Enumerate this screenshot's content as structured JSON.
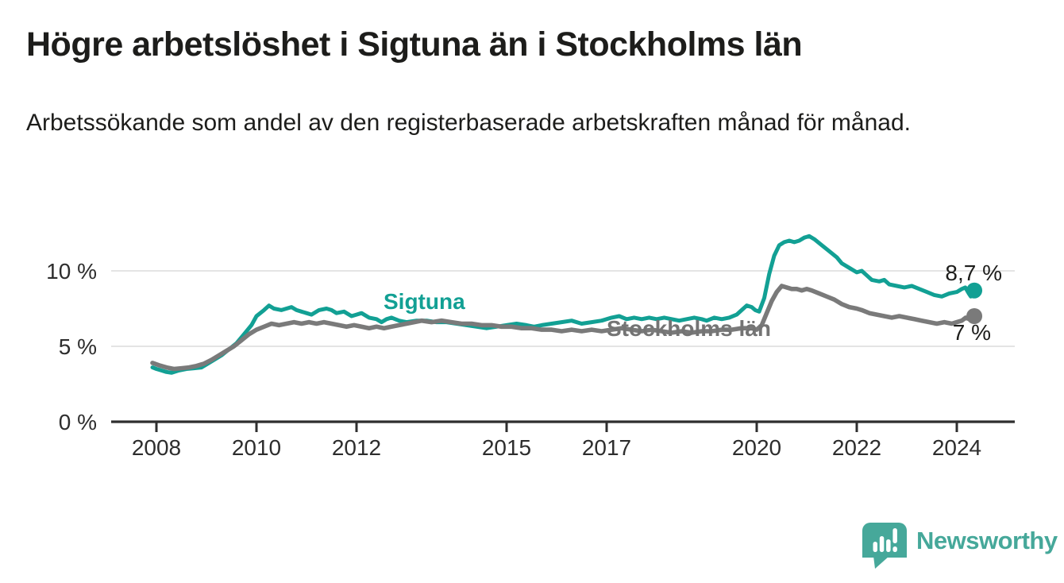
{
  "header": {
    "title": "Högre arbetslöshet i Sigtuna än i Stockholms län",
    "subtitle": "Arbetssökande som andel av den registerbaserade arbetskraften månad för månad."
  },
  "branding": {
    "name": "Newsworthy",
    "logo_icon": "bar-chart-speech-bubble-icon",
    "teal": "#46a89a"
  },
  "colors": {
    "sigtuna_line": "#12a094",
    "stockholm_line": "#7a7a7a",
    "gridline": "#dbdbdb",
    "axis": "#2e2e2e",
    "text": "#1d1d1b"
  },
  "chart_data": {
    "type": "line",
    "x_axis": {
      "ticks": [
        2008,
        2010,
        2012,
        2015,
        2017,
        2020,
        2022,
        2024
      ]
    },
    "y_axis": {
      "ticks": [
        {
          "value": 0,
          "label": "0 %"
        },
        {
          "value": 5,
          "label": "5 %"
        },
        {
          "value": 10,
          "label": "10 %"
        }
      ],
      "ylim": [
        0,
        13
      ]
    },
    "grid": "horizontal-only",
    "legend": "inline-labels",
    "series": [
      {
        "name": "Sigtuna",
        "color": "#12a094",
        "end_value_label": "8,7 %",
        "end_value": 8.7,
        "points": [
          [
            2007.92,
            3.6
          ],
          [
            2008.0,
            3.5
          ],
          [
            2008.1,
            3.4
          ],
          [
            2008.2,
            3.3
          ],
          [
            2008.3,
            3.25
          ],
          [
            2008.45,
            3.4
          ],
          [
            2008.6,
            3.5
          ],
          [
            2008.75,
            3.55
          ],
          [
            2008.9,
            3.6
          ],
          [
            2009.0,
            3.8
          ],
          [
            2009.15,
            4.1
          ],
          [
            2009.3,
            4.4
          ],
          [
            2009.45,
            4.8
          ],
          [
            2009.6,
            5.2
          ],
          [
            2009.75,
            5.8
          ],
          [
            2009.9,
            6.4
          ],
          [
            2010.0,
            7.0
          ],
          [
            2010.15,
            7.4
          ],
          [
            2010.25,
            7.7
          ],
          [
            2010.35,
            7.5
          ],
          [
            2010.5,
            7.4
          ],
          [
            2010.6,
            7.5
          ],
          [
            2010.7,
            7.6
          ],
          [
            2010.8,
            7.4
          ],
          [
            2010.9,
            7.3
          ],
          [
            2011.0,
            7.2
          ],
          [
            2011.1,
            7.1
          ],
          [
            2011.25,
            7.4
          ],
          [
            2011.4,
            7.5
          ],
          [
            2011.5,
            7.4
          ],
          [
            2011.6,
            7.2
          ],
          [
            2011.75,
            7.3
          ],
          [
            2011.9,
            7.0
          ],
          [
            2012.0,
            7.1
          ],
          [
            2012.1,
            7.2
          ],
          [
            2012.25,
            6.9
          ],
          [
            2012.4,
            6.8
          ],
          [
            2012.5,
            6.6
          ],
          [
            2012.6,
            6.8
          ],
          [
            2012.7,
            6.9
          ],
          [
            2012.85,
            6.7
          ],
          [
            2013.0,
            6.6
          ],
          [
            2013.2,
            6.7
          ],
          [
            2013.4,
            6.7
          ],
          [
            2013.6,
            6.6
          ],
          [
            2013.8,
            6.6
          ],
          [
            2014.0,
            6.5
          ],
          [
            2014.2,
            6.4
          ],
          [
            2014.4,
            6.3
          ],
          [
            2014.6,
            6.2
          ],
          [
            2014.8,
            6.3
          ],
          [
            2015.0,
            6.4
          ],
          [
            2015.2,
            6.5
          ],
          [
            2015.4,
            6.4
          ],
          [
            2015.55,
            6.3
          ],
          [
            2015.7,
            6.4
          ],
          [
            2015.9,
            6.5
          ],
          [
            2016.1,
            6.6
          ],
          [
            2016.3,
            6.7
          ],
          [
            2016.5,
            6.5
          ],
          [
            2016.7,
            6.6
          ],
          [
            2016.9,
            6.7
          ],
          [
            2017.1,
            6.9
          ],
          [
            2017.25,
            7.0
          ],
          [
            2017.4,
            6.8
          ],
          [
            2017.55,
            6.9
          ],
          [
            2017.7,
            6.8
          ],
          [
            2017.85,
            6.9
          ],
          [
            2018.0,
            6.8
          ],
          [
            2018.15,
            6.9
          ],
          [
            2018.3,
            6.8
          ],
          [
            2018.45,
            6.7
          ],
          [
            2018.6,
            6.8
          ],
          [
            2018.75,
            6.9
          ],
          [
            2018.9,
            6.8
          ],
          [
            2019.0,
            6.7
          ],
          [
            2019.15,
            6.9
          ],
          [
            2019.3,
            6.8
          ],
          [
            2019.45,
            6.9
          ],
          [
            2019.6,
            7.1
          ],
          [
            2019.7,
            7.4
          ],
          [
            2019.8,
            7.7
          ],
          [
            2019.9,
            7.6
          ],
          [
            2019.97,
            7.4
          ],
          [
            2020.05,
            7.3
          ],
          [
            2020.15,
            8.2
          ],
          [
            2020.25,
            9.8
          ],
          [
            2020.35,
            11.0
          ],
          [
            2020.45,
            11.7
          ],
          [
            2020.55,
            11.9
          ],
          [
            2020.65,
            12.0
          ],
          [
            2020.75,
            11.9
          ],
          [
            2020.85,
            12.0
          ],
          [
            2020.95,
            12.2
          ],
          [
            2021.05,
            12.3
          ],
          [
            2021.15,
            12.1
          ],
          [
            2021.3,
            11.7
          ],
          [
            2021.45,
            11.3
          ],
          [
            2021.6,
            10.9
          ],
          [
            2021.7,
            10.5
          ],
          [
            2021.85,
            10.2
          ],
          [
            2022.0,
            9.9
          ],
          [
            2022.1,
            10.0
          ],
          [
            2022.2,
            9.7
          ],
          [
            2022.3,
            9.4
          ],
          [
            2022.45,
            9.3
          ],
          [
            2022.55,
            9.4
          ],
          [
            2022.65,
            9.1
          ],
          [
            2022.8,
            9.0
          ],
          [
            2022.95,
            8.9
          ],
          [
            2023.1,
            9.0
          ],
          [
            2023.25,
            8.8
          ],
          [
            2023.4,
            8.6
          ],
          [
            2023.55,
            8.4
          ],
          [
            2023.7,
            8.3
          ],
          [
            2023.85,
            8.5
          ],
          [
            2024.0,
            8.6
          ],
          [
            2024.1,
            8.8
          ],
          [
            2024.17,
            8.9
          ],
          [
            2024.24,
            8.5
          ],
          [
            2024.28,
            8.3
          ],
          [
            2024.32,
            8.5
          ],
          [
            2024.35,
            8.7
          ]
        ]
      },
      {
        "name": "Stockholms län",
        "color": "#7a7a7a",
        "end_value_label": "7 %",
        "end_value": 7.0,
        "points": [
          [
            2007.92,
            3.9
          ],
          [
            2008.05,
            3.75
          ],
          [
            2008.2,
            3.6
          ],
          [
            2008.35,
            3.5
          ],
          [
            2008.5,
            3.55
          ],
          [
            2008.65,
            3.6
          ],
          [
            2008.8,
            3.7
          ],
          [
            2008.95,
            3.85
          ],
          [
            2009.1,
            4.1
          ],
          [
            2009.25,
            4.4
          ],
          [
            2009.4,
            4.7
          ],
          [
            2009.55,
            5.0
          ],
          [
            2009.7,
            5.4
          ],
          [
            2009.85,
            5.8
          ],
          [
            2010.0,
            6.1
          ],
          [
            2010.15,
            6.3
          ],
          [
            2010.3,
            6.5
          ],
          [
            2010.45,
            6.4
          ],
          [
            2010.6,
            6.5
          ],
          [
            2010.75,
            6.6
          ],
          [
            2010.9,
            6.5
          ],
          [
            2011.05,
            6.6
          ],
          [
            2011.2,
            6.5
          ],
          [
            2011.35,
            6.6
          ],
          [
            2011.5,
            6.5
          ],
          [
            2011.65,
            6.4
          ],
          [
            2011.8,
            6.3
          ],
          [
            2011.95,
            6.4
          ],
          [
            2012.1,
            6.3
          ],
          [
            2012.25,
            6.2
          ],
          [
            2012.4,
            6.3
          ],
          [
            2012.55,
            6.2
          ],
          [
            2012.7,
            6.3
          ],
          [
            2012.85,
            6.4
          ],
          [
            2013.0,
            6.5
          ],
          [
            2013.15,
            6.6
          ],
          [
            2013.3,
            6.7
          ],
          [
            2013.5,
            6.6
          ],
          [
            2013.7,
            6.7
          ],
          [
            2013.9,
            6.6
          ],
          [
            2014.1,
            6.5
          ],
          [
            2014.3,
            6.5
          ],
          [
            2014.5,
            6.4
          ],
          [
            2014.7,
            6.4
          ],
          [
            2014.9,
            6.3
          ],
          [
            2015.1,
            6.3
          ],
          [
            2015.3,
            6.2
          ],
          [
            2015.5,
            6.2
          ],
          [
            2015.7,
            6.1
          ],
          [
            2015.9,
            6.1
          ],
          [
            2016.1,
            6.0
          ],
          [
            2016.3,
            6.1
          ],
          [
            2016.5,
            6.0
          ],
          [
            2016.7,
            6.1
          ],
          [
            2016.9,
            6.0
          ],
          [
            2017.1,
            6.1
          ],
          [
            2017.3,
            6.2
          ],
          [
            2017.5,
            6.1
          ],
          [
            2017.7,
            6.0
          ],
          [
            2017.9,
            6.1
          ],
          [
            2018.1,
            6.0
          ],
          [
            2018.3,
            5.9
          ],
          [
            2018.5,
            6.0
          ],
          [
            2018.7,
            5.9
          ],
          [
            2018.9,
            6.0
          ],
          [
            2019.1,
            6.0
          ],
          [
            2019.3,
            6.1
          ],
          [
            2019.5,
            6.1
          ],
          [
            2019.7,
            6.2
          ],
          [
            2019.9,
            6.2
          ],
          [
            2020.0,
            6.1
          ],
          [
            2020.1,
            6.4
          ],
          [
            2020.2,
            7.2
          ],
          [
            2020.3,
            8.0
          ],
          [
            2020.4,
            8.6
          ],
          [
            2020.5,
            9.0
          ],
          [
            2020.6,
            8.9
          ],
          [
            2020.7,
            8.8
          ],
          [
            2020.8,
            8.8
          ],
          [
            2020.9,
            8.7
          ],
          [
            2021.0,
            8.8
          ],
          [
            2021.1,
            8.7
          ],
          [
            2021.25,
            8.5
          ],
          [
            2021.4,
            8.3
          ],
          [
            2021.55,
            8.1
          ],
          [
            2021.7,
            7.8
          ],
          [
            2021.85,
            7.6
          ],
          [
            2022.0,
            7.5
          ],
          [
            2022.1,
            7.4
          ],
          [
            2022.25,
            7.2
          ],
          [
            2022.4,
            7.1
          ],
          [
            2022.55,
            7.0
          ],
          [
            2022.7,
            6.9
          ],
          [
            2022.85,
            7.0
          ],
          [
            2023.0,
            6.9
          ],
          [
            2023.15,
            6.8
          ],
          [
            2023.3,
            6.7
          ],
          [
            2023.45,
            6.6
          ],
          [
            2023.6,
            6.5
          ],
          [
            2023.75,
            6.6
          ],
          [
            2023.9,
            6.5
          ],
          [
            2024.0,
            6.6
          ],
          [
            2024.1,
            6.7
          ],
          [
            2024.18,
            6.9
          ],
          [
            2024.25,
            6.8
          ],
          [
            2024.3,
            6.9
          ],
          [
            2024.35,
            7.0
          ]
        ]
      }
    ]
  }
}
